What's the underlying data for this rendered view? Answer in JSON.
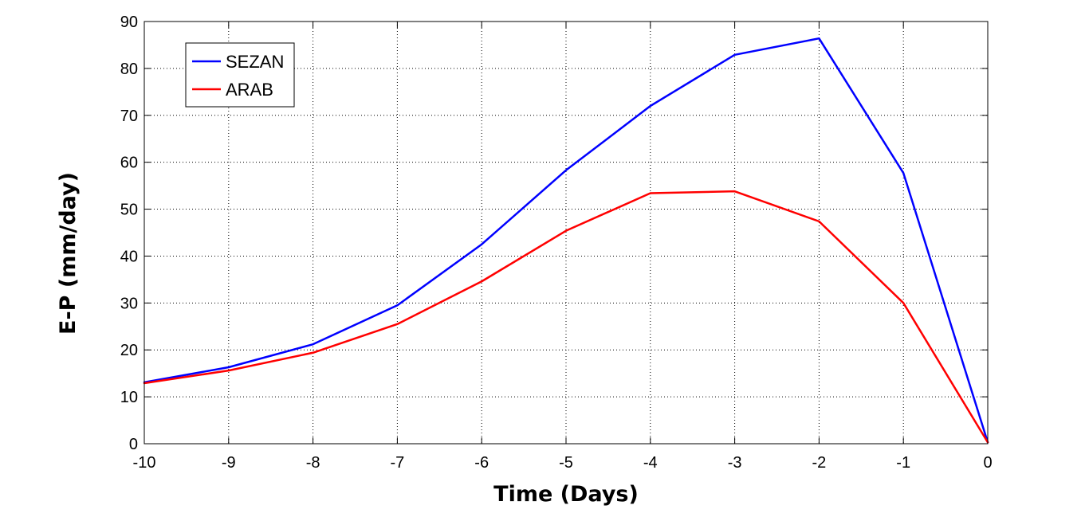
{
  "chart_data": {
    "type": "line",
    "title": "",
    "xlabel": "Time (Days)",
    "ylabel": "E-P (mm/day)",
    "xlim": [
      -10,
      0
    ],
    "ylim": [
      0,
      90
    ],
    "xticks": [
      -10,
      -9,
      -8,
      -7,
      -6,
      -5,
      -4,
      -3,
      -2,
      -1,
      0
    ],
    "yticks": [
      0,
      10,
      20,
      30,
      40,
      50,
      60,
      70,
      80,
      90
    ],
    "xtick_labels": [
      "-10",
      "-9",
      "-8",
      "-7",
      "-6",
      "-5",
      "-4",
      "-3",
      "-2",
      "-1",
      "0"
    ],
    "ytick_labels": [
      "0",
      "10",
      "20",
      "30",
      "40",
      "50",
      "60",
      "70",
      "80",
      "90"
    ],
    "grid": true,
    "legend_position": "top-left",
    "x": [
      -10,
      -9,
      -8,
      -7,
      -6,
      -5,
      -4,
      -3,
      -2,
      -1,
      0
    ],
    "series": [
      {
        "name": "SEZAN",
        "color": "#0000ff",
        "values": [
          13.1,
          16.3,
          21.2,
          29.5,
          42.5,
          58.3,
          72.0,
          82.9,
          86.4,
          57.7,
          0.3
        ]
      },
      {
        "name": "ARAB",
        "color": "#ff0000",
        "values": [
          12.9,
          15.6,
          19.4,
          25.5,
          34.6,
          45.4,
          53.4,
          53.8,
          47.4,
          30.0,
          0.3
        ]
      }
    ]
  }
}
